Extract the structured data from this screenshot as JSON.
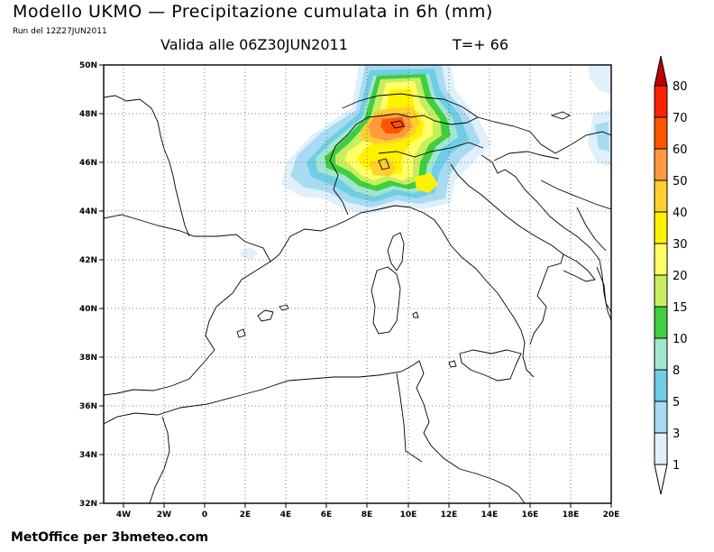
{
  "header": {
    "title": "Modello UKMO — Precipitazione cumulata in 6h (mm)",
    "run": "Run del 12Z27JUN2011",
    "valid": "Valida alle 06Z30JUN2011",
    "step": "T=+ 66"
  },
  "footer": {
    "credit": "MetOffice per 3bmeteo.com"
  },
  "map": {
    "projection": "lat-lon",
    "lon_range": [
      -5,
      20
    ],
    "lat_range": [
      32,
      50
    ],
    "gridlines": "dotted",
    "lat_ticks": [
      "50N",
      "48N",
      "46N",
      "44N",
      "42N",
      "40N",
      "38N",
      "36N",
      "34N",
      "32N"
    ],
    "lon_ticks": [
      "4W",
      "2W",
      "0",
      "2E",
      "4E",
      "6E",
      "8E",
      "10E",
      "12E",
      "14E",
      "16E",
      "18E",
      "20E"
    ]
  },
  "legend": {
    "levels": [
      {
        "label": "80",
        "color": "#c00000"
      },
      {
        "label": "70",
        "color": "#ff2000"
      },
      {
        "label": "60",
        "color": "#ff5500"
      },
      {
        "label": "50",
        "color": "#ff9a40"
      },
      {
        "label": "40",
        "color": "#ffcf30"
      },
      {
        "label": "30",
        "color": "#fff200"
      },
      {
        "label": "20",
        "color": "#ffff66"
      },
      {
        "label": "15",
        "color": "#c8ee60"
      },
      {
        "label": "10",
        "color": "#3fce3f"
      },
      {
        "label": "8",
        "color": "#a3e6cf"
      },
      {
        "label": "5",
        "color": "#6fcde6"
      },
      {
        "label": "3",
        "color": "#a8dbf2"
      },
      {
        "label": "1",
        "color": "#dff0fb"
      }
    ]
  }
}
